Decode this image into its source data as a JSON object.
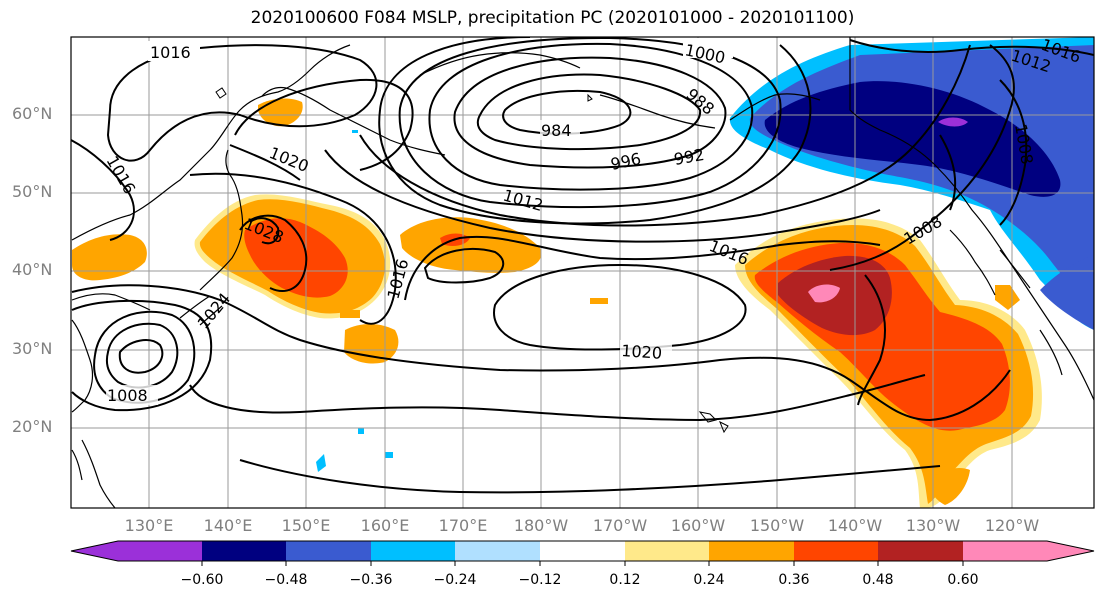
{
  "title": "2020100600 F084 MSLP, precipitation PC (2020101000 - 2020101100)",
  "lat_labels": [
    "60°N",
    "50°N",
    "40°N",
    "30°N",
    "20°N"
  ],
  "lon_labels": [
    "130°E",
    "140°E",
    "150°E",
    "160°E",
    "170°E",
    "180°W",
    "170°W",
    "160°W",
    "150°W",
    "140°W",
    "130°W",
    "120°W"
  ],
  "contour_labels": [
    "1016",
    "1000",
    "1016",
    "1012",
    "988",
    "984",
    "1020",
    "996",
    "992",
    "1016",
    "1012",
    "1028",
    "1016",
    "1008",
    "1016",
    "1008",
    "1024",
    "1020",
    "1008"
  ],
  "colorbar": {
    "ticks": [
      "−0.60",
      "−0.48",
      "−0.36",
      "−0.24",
      "−0.12",
      "0.12",
      "0.24",
      "0.36",
      "0.48",
      "0.60"
    ],
    "colors": [
      "#9b30d9",
      "#000080",
      "#3a5bd0",
      "#00bfff",
      "#b0e0ff",
      "#ffffff",
      "#ffe98a",
      "#ffa500",
      "#ff4500",
      "#b22222",
      "#ff88b8"
    ]
  },
  "colors": {
    "neg_vvstrong": "#9b30d9",
    "neg_vstrong": "#000080",
    "neg_strong": "#3a5bd0",
    "neg_mid": "#00bfff",
    "neg_weak": "#b0e0ff",
    "pos_weak": "#ffe98a",
    "pos_mid": "#ffa500",
    "pos_strong": "#ff4500",
    "pos_vstrong": "#b22222",
    "pos_vvstrong": "#ff88b8"
  }
}
